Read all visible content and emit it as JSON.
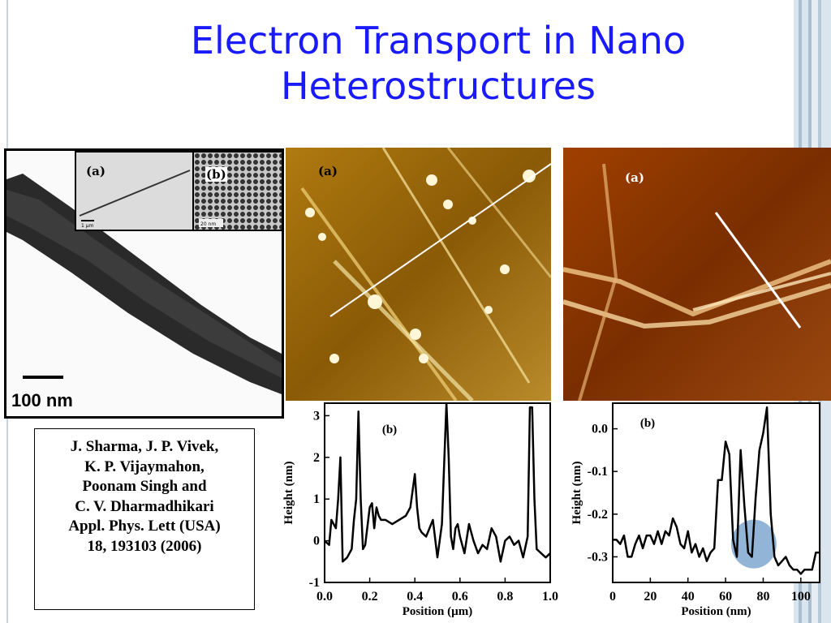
{
  "slide": {
    "title_line1": "Electron Transport in Nano",
    "title_line2": "Heterostructures"
  },
  "tem_panel": {
    "inset_a_label": "(a)",
    "inset_b_label": "(b)",
    "inset_a_scale": "1 µm",
    "inset_b_scale": "20 nm",
    "scalebar_label": "100 nm"
  },
  "afm_left": {
    "label": "(a)"
  },
  "afm_right": {
    "label": "(a)"
  },
  "reference": {
    "lines": [
      "J. Sharma, J. P. Vivek,",
      "K. P. Vijaymahon,",
      "Poonam Singh and",
      "C. V. Dharmadhikari",
      "Appl. Phys. Lett (USA)",
      "18, 193103 (2006)"
    ]
  },
  "chart_data": [
    {
      "type": "line",
      "label": "(b)",
      "xlabel": "Position (µm)",
      "ylabel": "Height (nm)",
      "xlim": [
        0.0,
        1.0
      ],
      "ylim": [
        -1,
        3.3
      ],
      "xticks": [
        "0.0",
        "0.2",
        "0.4",
        "0.6",
        "0.8",
        "1.0"
      ],
      "yticks": [
        "-1",
        "0",
        "1",
        "2",
        "3"
      ],
      "x": [
        0.0,
        0.02,
        0.03,
        0.05,
        0.06,
        0.07,
        0.08,
        0.1,
        0.12,
        0.13,
        0.14,
        0.15,
        0.16,
        0.17,
        0.18,
        0.2,
        0.21,
        0.22,
        0.23,
        0.24,
        0.25,
        0.27,
        0.3,
        0.33,
        0.36,
        0.38,
        0.4,
        0.41,
        0.42,
        0.43,
        0.45,
        0.48,
        0.5,
        0.52,
        0.54,
        0.55,
        0.56,
        0.57,
        0.58,
        0.59,
        0.6,
        0.62,
        0.64,
        0.66,
        0.68,
        0.7,
        0.72,
        0.74,
        0.76,
        0.78,
        0.8,
        0.82,
        0.84,
        0.86,
        0.88,
        0.9,
        0.91,
        0.92,
        0.93,
        0.94,
        0.96,
        0.98,
        1.0
      ],
      "y": [
        0.0,
        -0.1,
        0.5,
        0.3,
        1.0,
        2.0,
        -0.5,
        -0.4,
        -0.2,
        0.5,
        1.0,
        3.1,
        1.0,
        -0.2,
        -0.1,
        0.8,
        0.9,
        0.3,
        0.8,
        0.6,
        0.5,
        0.5,
        0.4,
        0.5,
        0.6,
        0.8,
        1.6,
        0.8,
        0.3,
        0.2,
        0.1,
        0.5,
        -0.4,
        0.4,
        3.3,
        2.0,
        0.1,
        -0.2,
        0.3,
        0.4,
        0.1,
        -0.3,
        0.4,
        0.0,
        -0.3,
        -0.1,
        -0.2,
        0.3,
        0.1,
        -0.5,
        0.0,
        0.1,
        -0.1,
        0.0,
        -0.4,
        0.1,
        3.2,
        3.2,
        1.0,
        -0.2,
        -0.3,
        -0.4,
        -0.3
      ]
    },
    {
      "type": "line",
      "label": "(b)",
      "xlabel": "Position (nm)",
      "ylabel": "Height (nm)",
      "xlim": [
        0,
        110
      ],
      "ylim": [
        -0.36,
        0.06
      ],
      "xticks": [
        "0",
        "20",
        "40",
        "60",
        "80",
        "100"
      ],
      "yticks": [
        "0.0",
        "-0.1",
        "-0.2",
        "-0.3"
      ],
      "x": [
        0,
        2,
        4,
        6,
        8,
        10,
        12,
        14,
        16,
        18,
        20,
        22,
        24,
        26,
        28,
        30,
        32,
        34,
        36,
        38,
        40,
        42,
        44,
        46,
        48,
        50,
        52,
        54,
        56,
        58,
        60,
        62,
        64,
        66,
        68,
        70,
        72,
        74,
        76,
        78,
        80,
        82,
        84,
        86,
        88,
        90,
        92,
        94,
        96,
        98,
        100,
        102,
        104,
        106,
        108,
        110
      ],
      "y": [
        -0.26,
        -0.26,
        -0.27,
        -0.25,
        -0.3,
        -0.3,
        -0.27,
        -0.25,
        -0.28,
        -0.25,
        -0.25,
        -0.27,
        -0.24,
        -0.27,
        -0.24,
        -0.25,
        -0.21,
        -0.23,
        -0.27,
        -0.28,
        -0.24,
        -0.29,
        -0.27,
        -0.3,
        -0.28,
        -0.31,
        -0.29,
        -0.28,
        -0.12,
        -0.12,
        -0.03,
        -0.06,
        -0.26,
        -0.3,
        -0.05,
        -0.18,
        -0.29,
        -0.3,
        -0.16,
        -0.05,
        -0.01,
        0.05,
        -0.2,
        -0.3,
        -0.32,
        -0.31,
        -0.3,
        -0.32,
        -0.33,
        -0.33,
        -0.34,
        -0.33,
        -0.33,
        -0.33,
        -0.29,
        -0.29
      ],
      "highlight": {
        "shape": "ellipse",
        "color": "#7fa7cf",
        "center_x": 75,
        "center_y": -0.27
      }
    }
  ]
}
